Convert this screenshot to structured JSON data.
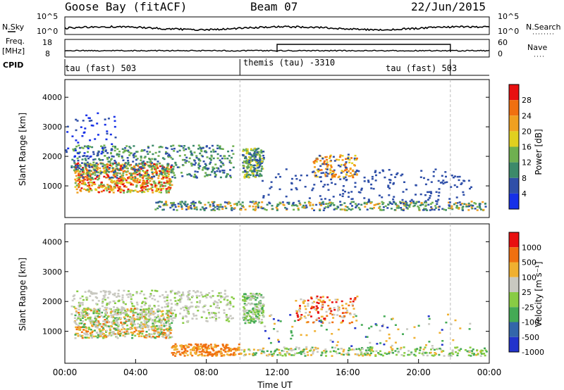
{
  "header": {
    "station": "Goose Bay (fitACF)",
    "beam": "Beam 07",
    "date": "22/Jun/2015"
  },
  "nsky": {
    "label": "N.Sky",
    "ticks": [
      "10^5",
      "10^0"
    ]
  },
  "nsearch": {
    "label": "N.Search",
    "ticks": [
      "10^5",
      "10^0"
    ]
  },
  "freq": {
    "label_line1": "Freq.",
    "label_line2": "[MHz]",
    "ticks": [
      "18",
      "8"
    ]
  },
  "nave": {
    "label": "Nave",
    "ticks": [
      "60",
      "0"
    ]
  },
  "cpid": {
    "label": "CPID",
    "segments": [
      "tau (fast) 503",
      "themis (tau) -3310",
      "tau (fast) 503"
    ]
  },
  "chart_data": [
    {
      "type": "heatmap",
      "panel": "power",
      "ylabel": "Slant Range [km]",
      "yticks": [
        "1000",
        "2000",
        "3000",
        "4000"
      ],
      "ylim": [
        0,
        4600
      ],
      "colorbar": {
        "label": "Power [dB]",
        "ticks": [
          "4",
          "8",
          "12",
          "16",
          "20",
          "24",
          "28"
        ],
        "colors": [
          "#1630e8",
          "#2f4fa8",
          "#3c8a6a",
          "#6fb050",
          "#e0d020",
          "#f0a020",
          "#f07010",
          "#e81010"
        ]
      }
    },
    {
      "type": "heatmap",
      "panel": "velocity",
      "ylabel": "Slant Range [km]",
      "yticks": [
        "1000",
        "2000",
        "3000",
        "4000"
      ],
      "ylim": [
        0,
        4600
      ],
      "colorbar": {
        "label": "Velocity [m s⁻¹]",
        "ticks": [
          "1000",
          "500",
          "100",
          "25",
          "-25",
          "-100",
          "-500",
          "-1000"
        ],
        "colors": [
          "#2233cc",
          "#3366aa",
          "#44aa55",
          "#88cc44",
          "#c8c8c0",
          "#f0b030",
          "#f07010",
          "#e81010"
        ]
      }
    }
  ],
  "xaxis": {
    "label": "Time UT",
    "ticks": [
      "00:00",
      "04:00",
      "08:00",
      "12:00",
      "16:00",
      "20:00",
      "00:00"
    ]
  }
}
